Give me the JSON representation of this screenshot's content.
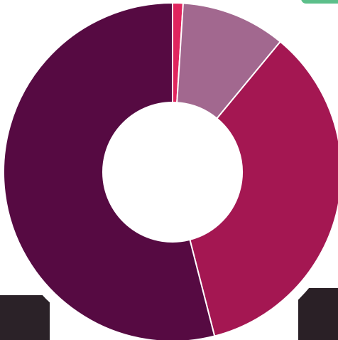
{
  "chart_data": {
    "type": "pie",
    "values": [
      1,
      10,
      35,
      54
    ],
    "colors": [
      "#e0245e",
      "#a2688f",
      "#a41752",
      "#560a42"
    ],
    "donut": true
  }
}
